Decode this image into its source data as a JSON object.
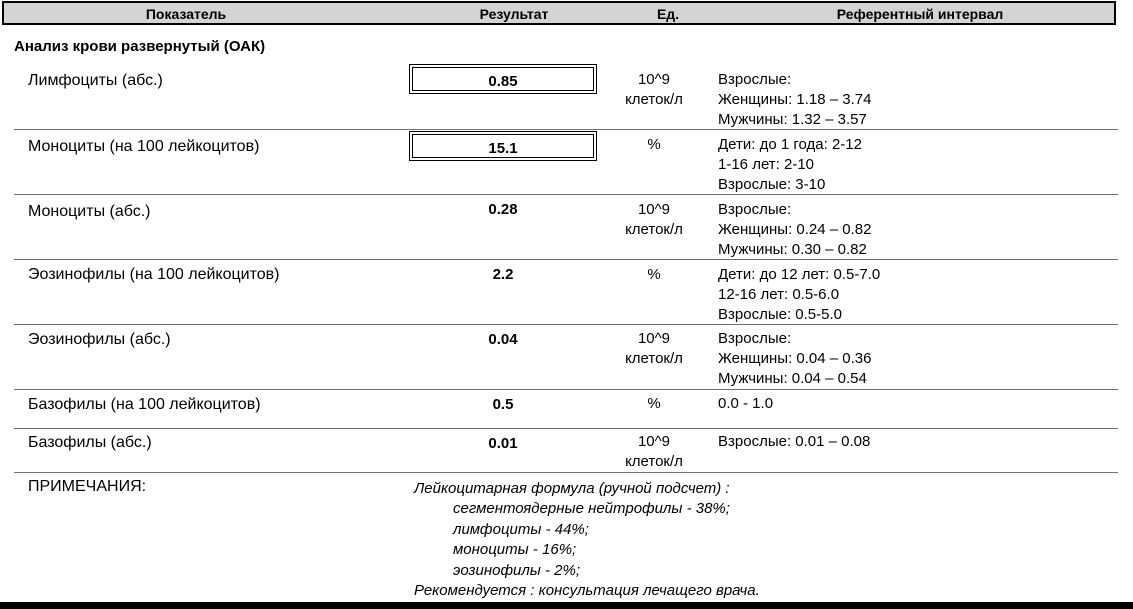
{
  "header": {
    "col_indicator": "Показатель",
    "col_result": "Результат",
    "col_unit": "Ед.",
    "col_ref": "Референтный интервал"
  },
  "section_title": "Анализ крови развернутый (ОАК)",
  "rows": [
    {
      "name": "Лимфоциты (абс.)",
      "result": "0.85",
      "flag": true,
      "unit": [
        "10^9",
        "клеток/л"
      ],
      "ref": [
        "Взрослые:",
        "Женщины: 1.18 – 3.74",
        "Мужчины: 1.32 – 3.57"
      ]
    },
    {
      "name": "Моноциты (на 100 лейкоцитов)",
      "result": "15.1",
      "flag": true,
      "unit": [
        "%",
        ""
      ],
      "ref": [
        "Дети: до 1 года: 2-12",
        "1-16 лет: 2-10",
        "Взрослые: 3-10"
      ]
    },
    {
      "name": "Моноциты (абс.)",
      "result": "0.28",
      "flag": false,
      "unit": [
        "10^9",
        "клеток/л"
      ],
      "ref": [
        "Взрослые:",
        "Женщины: 0.24 – 0.82",
        "Мужчины: 0.30 – 0.82"
      ]
    },
    {
      "name": "Эозинофилы (на 100 лейкоцитов)",
      "result": "2.2",
      "flag": false,
      "unit": [
        "%",
        ""
      ],
      "ref": [
        "Дети: до 12 лет: 0.5-7.0",
        "12-16 лет: 0.5-6.0",
        "Взрослые: 0.5-5.0"
      ]
    },
    {
      "name": "Эозинофилы (абс.)",
      "result": "0.04",
      "flag": false,
      "unit": [
        "10^9",
        "клеток/л"
      ],
      "ref": [
        "Взрослые:",
        "Женщины: 0.04 – 0.36",
        "Мужчины: 0.04 – 0.54"
      ]
    },
    {
      "name": "Базофилы (на 100 лейкоцитов)",
      "result": "0.5",
      "flag": false,
      "unit": [
        "%",
        ""
      ],
      "ref": [
        "0.0 - 1.0",
        "",
        ""
      ]
    },
    {
      "name": "Базофилы (абс.)",
      "result": "0.01",
      "flag": false,
      "unit": [
        "10^9",
        "клеток/л"
      ],
      "ref": [
        "Взрослые: 0.01 – 0.08",
        "",
        ""
      ]
    }
  ],
  "notes": {
    "label": "ПРИМЕЧАНИЯ:",
    "lines": [
      "Лейкоцитарная формула (ручной подсчет) :",
      "сегментоядерные нейтрофилы - 38%;",
      "лимфоциты - 44%;",
      "моноциты - 16%;",
      "эозинофилы - 2%;",
      "Рекомендуется : консультация  лечащего врача."
    ]
  }
}
